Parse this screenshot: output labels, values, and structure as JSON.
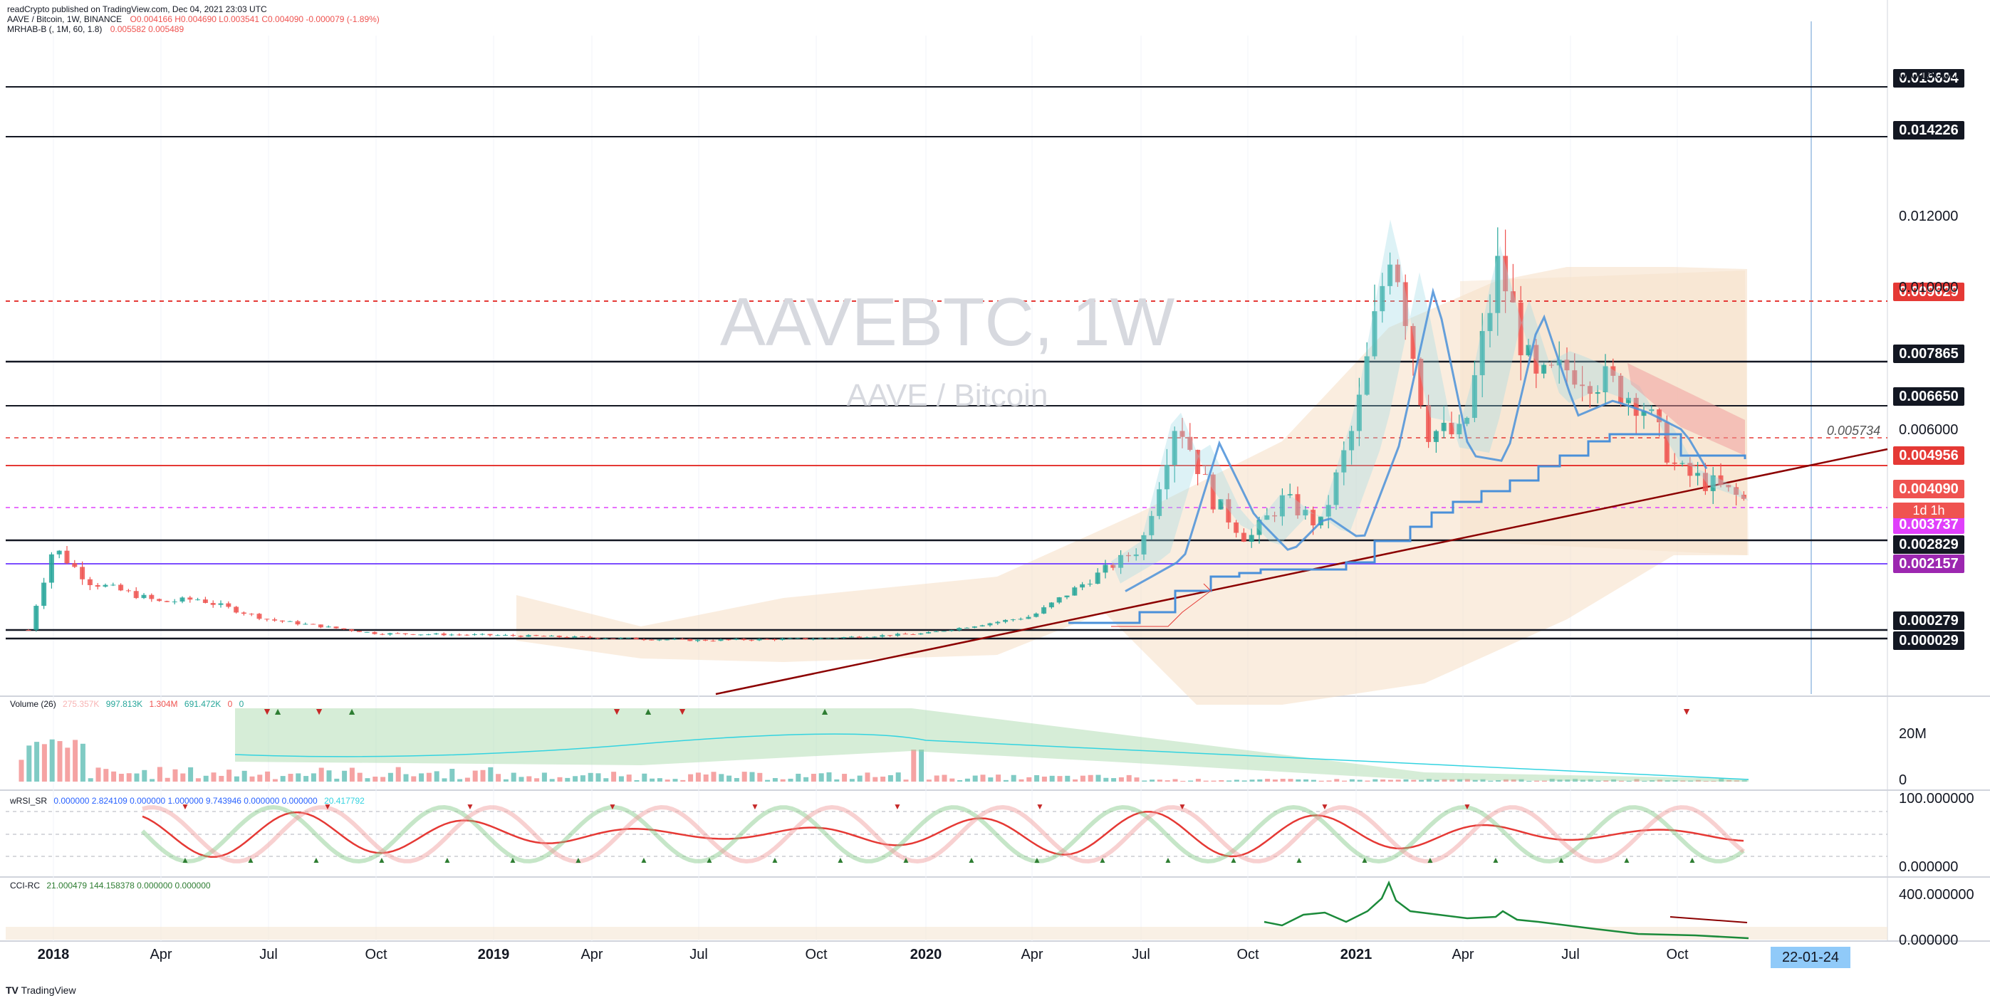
{
  "published_by": "readCrypto published on TradingView.com, Dec 04, 2021 23:03 UTC",
  "footer": "TradingView",
  "watermark": {
    "symbol": "AAVEBTC, 1W",
    "name": "AAVE / Bitcoin"
  },
  "legend_main": {
    "symbol": "AAVE / Bitcoin, 1W, BINANCE",
    "ohlc": "O0.004166 H0.004690 L0.003541 C0.004090 -0.000079 (-1.89%)"
  },
  "legend_indicator": {
    "name": "MRHAB-B (, 1M, 60, 1.8)",
    "values": "0.005582 0.005489"
  },
  "volume_title": {
    "name": "Volume (26)",
    "v1": "275.357K",
    "v2": "997.813K",
    "v3": "1.304M",
    "v4": "691.472K",
    "v5": "0",
    "v6": "0"
  },
  "rsi_title": {
    "name": "wRSI_SR",
    "values": "0.000000 2.824109 0.000000 1.000000 9.743946 0.000000 0.000000",
    "extra": "20.417792"
  },
  "cci_title": {
    "name": "CCI-RC",
    "values": "21.000479 144.158378 0.000000 0.000000"
  },
  "colors": {
    "up": "#26a69a",
    "down": "#ef5350",
    "trend": "#8b0000",
    "blue": "#4a90d9",
    "orange": "#f4a46b",
    "cyan": "#33d3e0",
    "red_level": "#e53935",
    "magenta": "#e040fb",
    "purple": "#9c27b0"
  },
  "price_tags": [
    {
      "value": "0.015694",
      "color": "#131722"
    },
    {
      "value": "0.014226",
      "color": "#131722"
    },
    {
      "value": "0.009629",
      "color": "#e53935"
    },
    {
      "value": "0.007865",
      "color": "#131722"
    },
    {
      "value": "0.006650",
      "color": "#131722"
    },
    {
      "value": "0.004956",
      "color": "#e53935"
    },
    {
      "value": "0.004090",
      "color": "#ef5350"
    },
    {
      "value": "0.003737",
      "color": "#e040fb"
    },
    {
      "value": "0.002829",
      "color": "#131722"
    },
    {
      "value": "0.002157",
      "color": "#9c27b0"
    },
    {
      "value": "0.000279",
      "color": "#131722"
    },
    {
      "value": "0.000029",
      "color": "#131722"
    }
  ],
  "countdown": "1d 1h",
  "line_label": "0.005734",
  "y_axis_ticks": [
    "0.016000",
    "0.012000",
    "0.010000",
    "0.006000"
  ],
  "volume_axis": [
    "20M",
    "0"
  ],
  "rsi_axis": [
    "100.000000",
    "0.000000"
  ],
  "cci_axis": [
    "400.000000",
    "0.000000"
  ],
  "x_axis": [
    "2018",
    "Apr",
    "Jul",
    "Oct",
    "2019",
    "Apr",
    "Jul",
    "Oct",
    "2020",
    "Apr",
    "Jul",
    "Oct",
    "2021",
    "Apr",
    "Jul",
    "Oct"
  ],
  "crosshair_date": "22-01-24",
  "chart_data": {
    "type": "candlestick",
    "title": "AAVE / Bitcoin, 1W, BINANCE",
    "ylim": [
      -0.003,
      0.0175
    ],
    "horizontal_levels": [
      0.015694,
      0.014226,
      0.009629,
      0.007865,
      0.00665,
      0.005734,
      0.004956,
      0.003737,
      0.002829,
      0.002157,
      0.000279,
      2.9e-05
    ],
    "price_keypoints": [
      {
        "x": "2017-12",
        "y": 0.0004
      },
      {
        "x": "2018-01",
        "y": 0.0028
      },
      {
        "x": "2018-02",
        "y": 0.0018
      },
      {
        "x": "2018-04",
        "y": 0.0012
      },
      {
        "x": "2018-05",
        "y": 0.0013
      },
      {
        "x": "2018-07",
        "y": 0.0007
      },
      {
        "x": "2018-10",
        "y": 0.0003
      },
      {
        "x": "2019-01",
        "y": 0.00025
      },
      {
        "x": "2019-07",
        "y": 0.0001
      },
      {
        "x": "2019-10",
        "y": 0.00015
      },
      {
        "x": "2020-01",
        "y": 0.0003
      },
      {
        "x": "2020-04",
        "y": 0.0008
      },
      {
        "x": "2020-07",
        "y": 0.0028
      },
      {
        "x": "2020-08",
        "y": 0.0066
      },
      {
        "x": "2020-09",
        "y": 0.0042
      },
      {
        "x": "2020-10",
        "y": 0.003
      },
      {
        "x": "2020-11",
        "y": 0.0042
      },
      {
        "x": "2020-12",
        "y": 0.0034
      },
      {
        "x": "2021-01",
        "y": 0.0065
      },
      {
        "x": "2021-02",
        "y": 0.0118
      },
      {
        "x": "2021-03",
        "y": 0.0062
      },
      {
        "x": "2021-04",
        "y": 0.006
      },
      {
        "x": "2021-05",
        "y": 0.011
      },
      {
        "x": "2021-06",
        "y": 0.0075
      },
      {
        "x": "2021-07",
        "y": 0.008
      },
      {
        "x": "2021-08",
        "y": 0.0076
      },
      {
        "x": "2021-09",
        "y": 0.007
      },
      {
        "x": "2021-10",
        "y": 0.005
      },
      {
        "x": "2021-11",
        "y": 0.0046
      },
      {
        "x": "2021-12",
        "y": 0.00409
      }
    ]
  }
}
